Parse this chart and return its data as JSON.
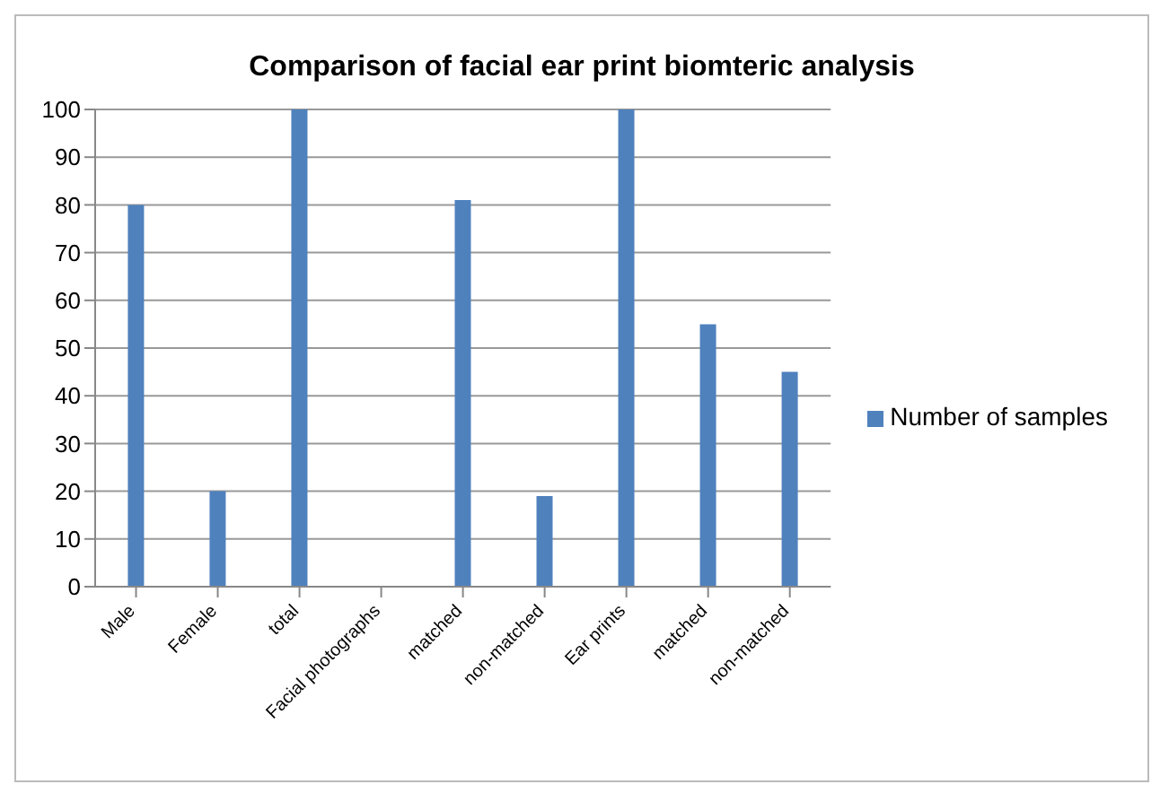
{
  "chart_data": {
    "type": "bar",
    "title": "Comparison of facial ear print biomteric analysis",
    "categories": [
      "Male",
      "Female",
      "total",
      "Facial photographs",
      "matched",
      "non-matched",
      "Ear prints",
      "matched",
      "non-matched"
    ],
    "series": [
      {
        "name": "Number of samples",
        "color": "#4f81bd",
        "values": [
          80,
          20,
          100,
          null,
          81,
          19,
          100,
          55,
          45
        ]
      }
    ],
    "ylim": [
      0,
      100
    ],
    "yticks": [
      0,
      10,
      20,
      30,
      40,
      50,
      60,
      70,
      80,
      90,
      100
    ],
    "grid": "y",
    "legend": "right"
  }
}
